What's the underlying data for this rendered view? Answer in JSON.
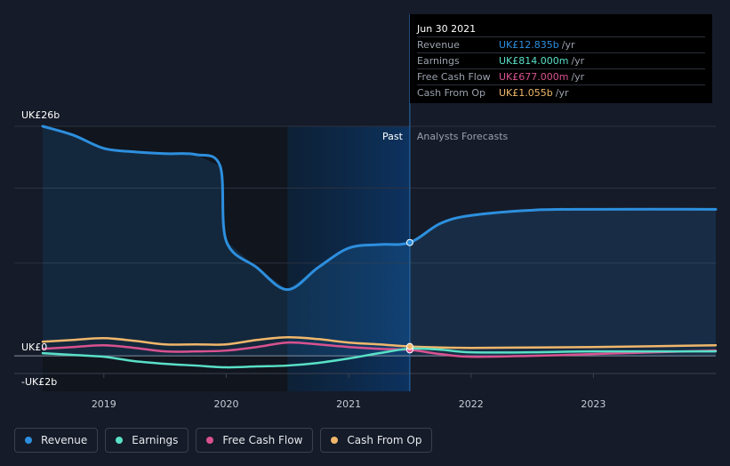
{
  "chart_data": {
    "type": "line",
    "title": "",
    "xlabel": "",
    "ylabel": "",
    "y_unit": "UK£b",
    "ylim": [
      -2,
      26
    ],
    "xlim": [
      2018.5,
      2024.0
    ],
    "x_ticks": [
      2019,
      2020,
      2021,
      2022,
      2023
    ],
    "y_tick_labels": {
      "top": "UK£26b",
      "zero": "UK£0",
      "bottom": "-UK£2b"
    },
    "divider_x": 2021.5,
    "past_label": "Past",
    "forecast_label": "Analysts Forecasts",
    "series": [
      {
        "name": "Revenue",
        "color": "#2d8fde",
        "points": [
          [
            2018.5,
            26
          ],
          [
            2018.75,
            25
          ],
          [
            2019.0,
            23.5
          ],
          [
            2019.25,
            23.1
          ],
          [
            2019.5,
            22.9
          ],
          [
            2019.75,
            22.8
          ],
          [
            2019.95,
            21.5
          ],
          [
            2020.0,
            13
          ],
          [
            2020.25,
            10
          ],
          [
            2020.5,
            7.5
          ],
          [
            2020.75,
            10
          ],
          [
            2021.0,
            12.2
          ],
          [
            2021.25,
            12.6
          ],
          [
            2021.5,
            12.835
          ],
          [
            2021.75,
            15
          ],
          [
            2022.0,
            15.9
          ],
          [
            2022.5,
            16.5
          ],
          [
            2023.0,
            16.6
          ],
          [
            2024.0,
            16.6
          ]
        ]
      },
      {
        "name": "Earnings",
        "color": "#59e0c7",
        "points": [
          [
            2018.5,
            0.3
          ],
          [
            2018.75,
            0.1
          ],
          [
            2019.0,
            -0.1
          ],
          [
            2019.25,
            -0.6
          ],
          [
            2019.5,
            -0.9
          ],
          [
            2019.75,
            -1.1
          ],
          [
            2020.0,
            -1.3
          ],
          [
            2020.25,
            -1.2
          ],
          [
            2020.5,
            -1.1
          ],
          [
            2020.75,
            -0.8
          ],
          [
            2021.0,
            -0.3
          ],
          [
            2021.25,
            0.3
          ],
          [
            2021.5,
            0.814
          ],
          [
            2021.75,
            0.7
          ],
          [
            2022.0,
            0.4
          ],
          [
            2022.5,
            0.4
          ],
          [
            2023.0,
            0.5
          ],
          [
            2024.0,
            0.5
          ]
        ]
      },
      {
        "name": "Free Cash Flow",
        "color": "#d9528f",
        "points": [
          [
            2018.5,
            0.8
          ],
          [
            2018.75,
            1.0
          ],
          [
            2019.0,
            1.2
          ],
          [
            2019.25,
            0.9
          ],
          [
            2019.5,
            0.5
          ],
          [
            2019.75,
            0.5
          ],
          [
            2020.0,
            0.6
          ],
          [
            2020.25,
            1.0
          ],
          [
            2020.5,
            1.5
          ],
          [
            2020.75,
            1.3
          ],
          [
            2021.0,
            1.0
          ],
          [
            2021.25,
            0.8
          ],
          [
            2021.5,
            0.677
          ],
          [
            2021.75,
            0.2
          ],
          [
            2022.0,
            -0.1
          ],
          [
            2022.5,
            0.0
          ],
          [
            2023.0,
            0.2
          ],
          [
            2024.0,
            0.6
          ]
        ]
      },
      {
        "name": "Cash From Op",
        "color": "#f0b76b",
        "points": [
          [
            2018.5,
            1.6
          ],
          [
            2018.75,
            1.8
          ],
          [
            2019.0,
            2.0
          ],
          [
            2019.25,
            1.7
          ],
          [
            2019.5,
            1.3
          ],
          [
            2019.75,
            1.3
          ],
          [
            2020.0,
            1.3
          ],
          [
            2020.25,
            1.8
          ],
          [
            2020.5,
            2.1
          ],
          [
            2020.75,
            1.9
          ],
          [
            2021.0,
            1.5
          ],
          [
            2021.25,
            1.3
          ],
          [
            2021.5,
            1.055
          ],
          [
            2021.75,
            0.95
          ],
          [
            2022.0,
            0.9
          ],
          [
            2022.5,
            0.95
          ],
          [
            2023.0,
            1.0
          ],
          [
            2024.0,
            1.2
          ]
        ]
      }
    ]
  },
  "tooltip": {
    "date": "Jun 30 2021",
    "rows": [
      {
        "label": "Revenue",
        "value": "UK£12.835b",
        "unit": "/yr",
        "color": "#2d8fde"
      },
      {
        "label": "Earnings",
        "value": "UK£814.000m",
        "unit": "/yr",
        "color": "#59e0c7"
      },
      {
        "label": "Free Cash Flow",
        "value": "UK£677.000m",
        "unit": "/yr",
        "color": "#d9528f"
      },
      {
        "label": "Cash From Op",
        "value": "UK£1.055b",
        "unit": "/yr",
        "color": "#f0b76b"
      }
    ]
  },
  "legend": [
    {
      "label": "Revenue",
      "color": "#2d8fde"
    },
    {
      "label": "Earnings",
      "color": "#59e0c7"
    },
    {
      "label": "Free Cash Flow",
      "color": "#d9528f"
    },
    {
      "label": "Cash From Op",
      "color": "#f0b76b"
    }
  ]
}
